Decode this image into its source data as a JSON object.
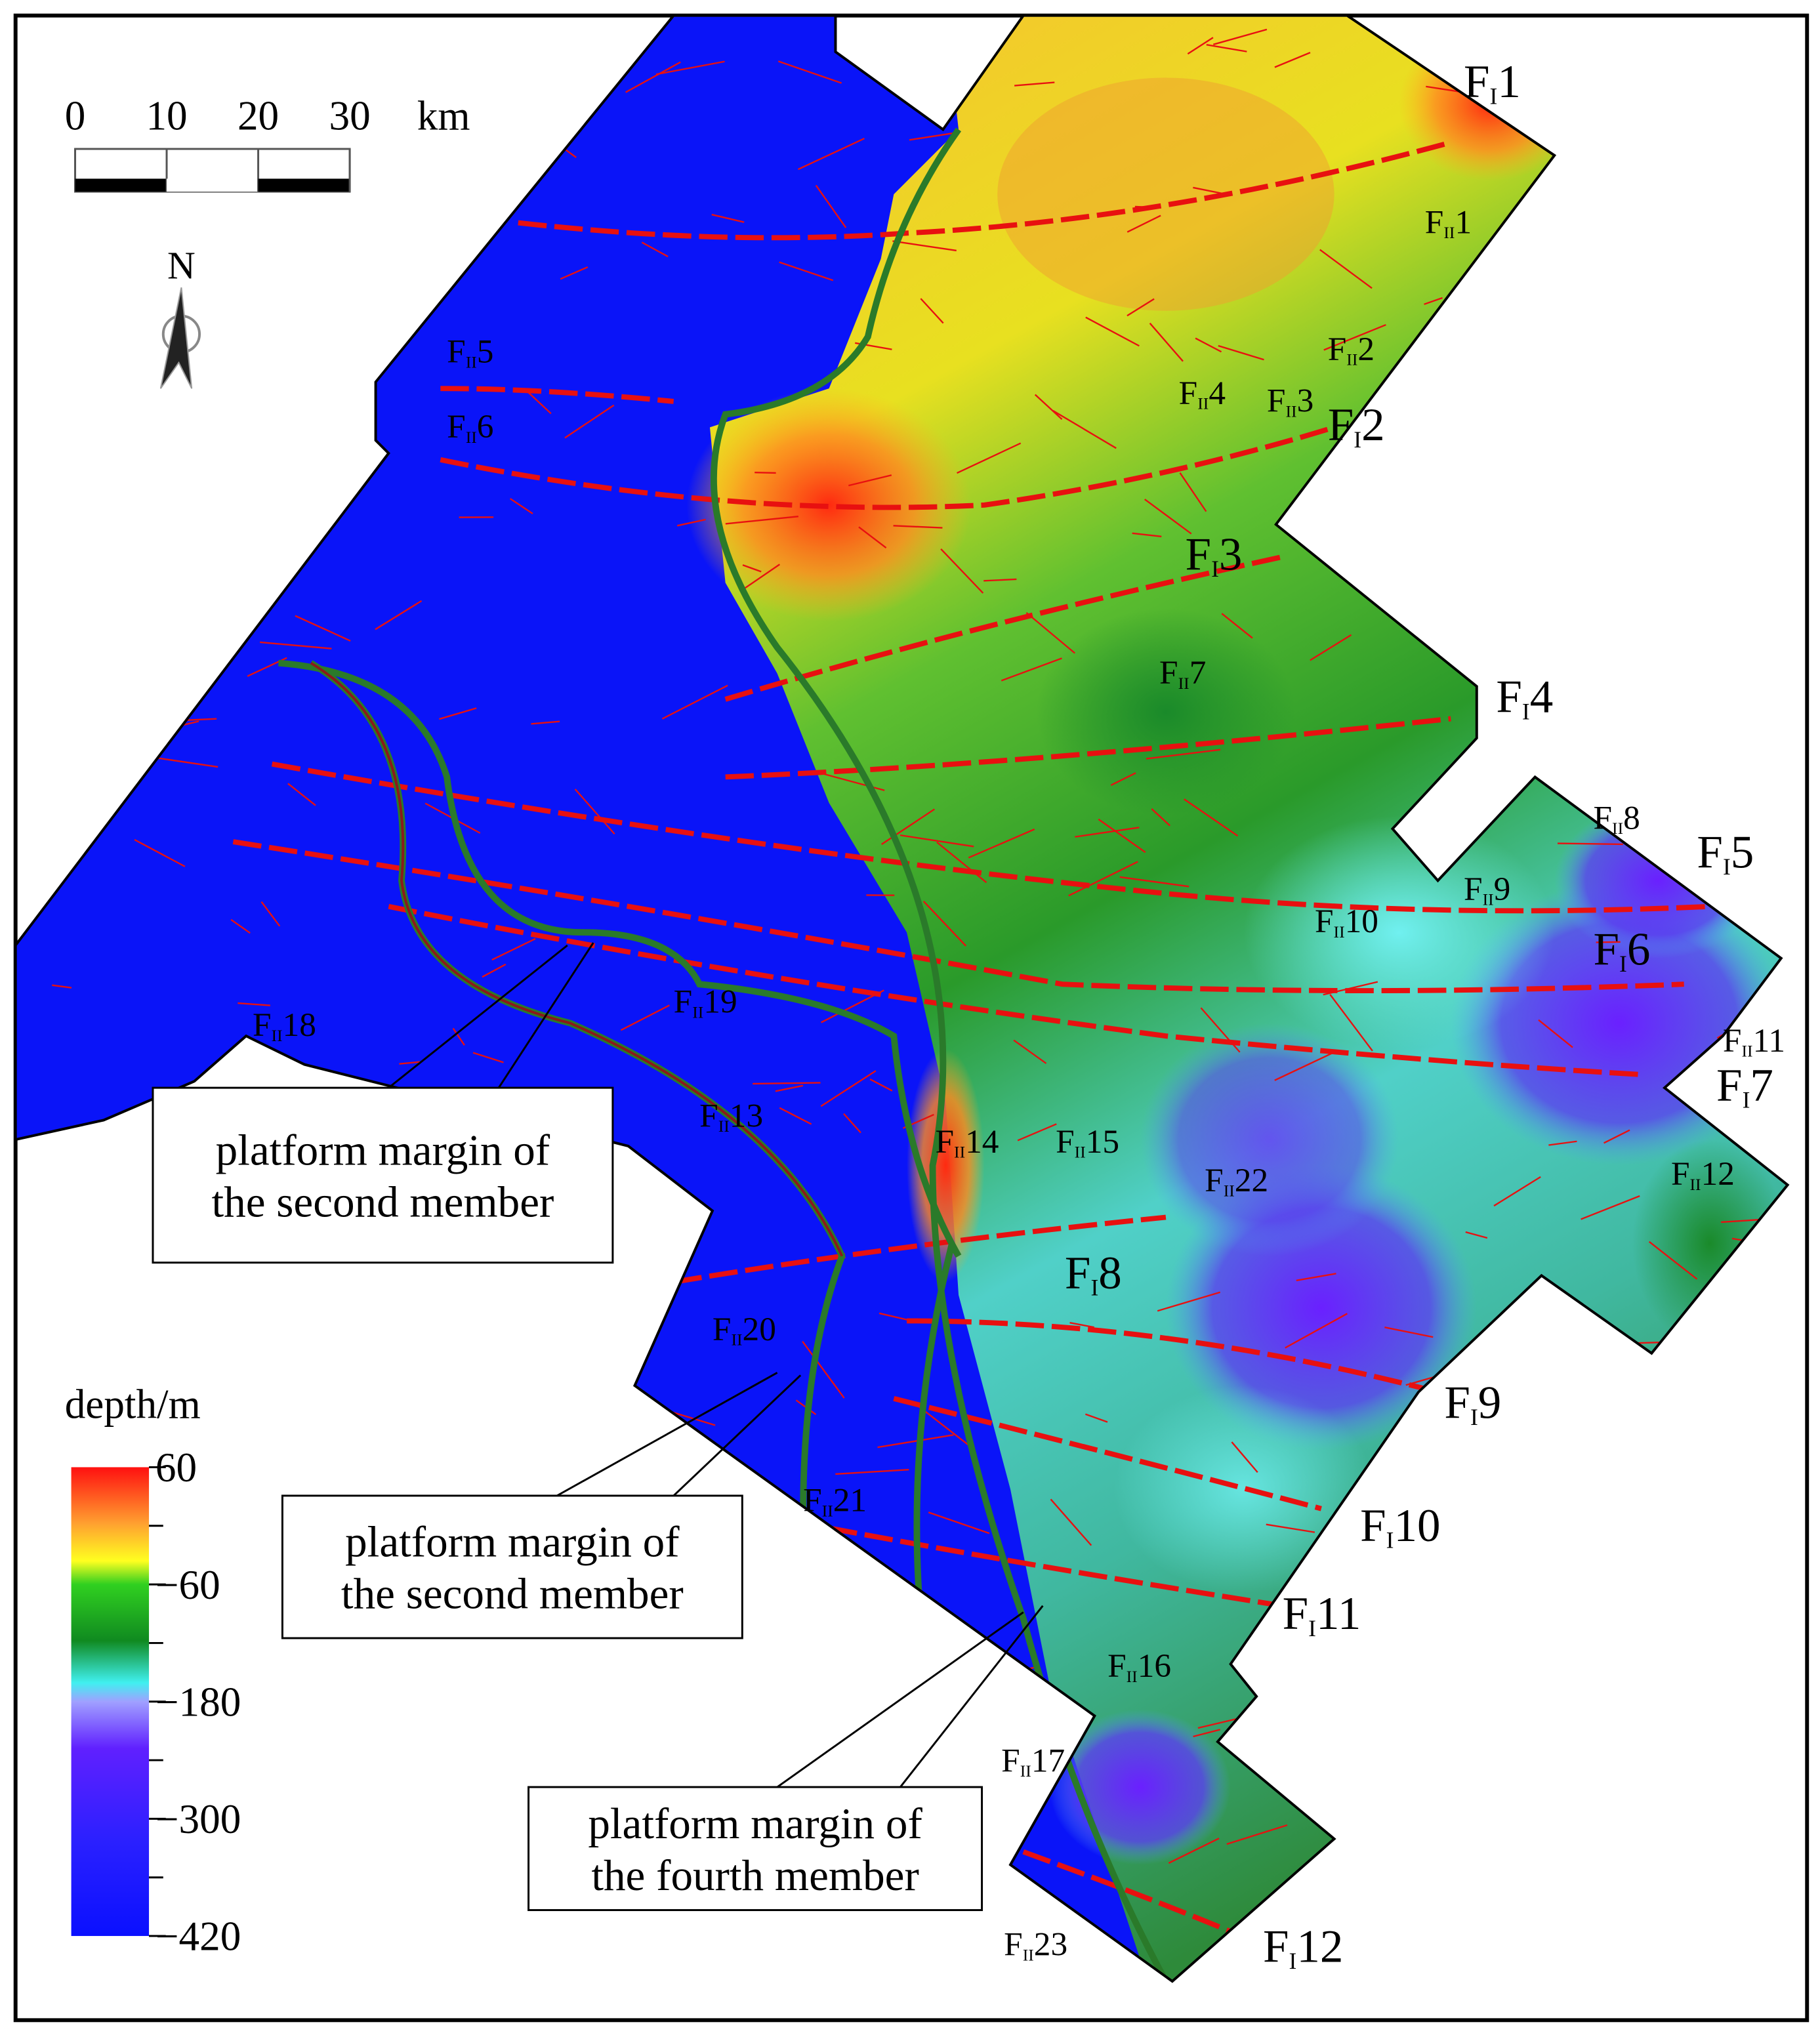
{
  "scale_bar": {
    "ticks": [
      0,
      10,
      20,
      30
    ],
    "unit": "km"
  },
  "north_label": "N",
  "faults": [
    {
      "letter": "F",
      "grade": "I",
      "number": "1"
    },
    {
      "letter": "F",
      "grade": "II",
      "number": "1"
    },
    {
      "letter": "F",
      "grade": "II",
      "number": "2"
    },
    {
      "letter": "F",
      "grade": "II",
      "number": "4"
    },
    {
      "letter": "F",
      "grade": "II",
      "number": "3"
    },
    {
      "letter": "F",
      "grade": "I",
      "number": "2"
    },
    {
      "letter": "F",
      "grade": "II",
      "number": "5"
    },
    {
      "letter": "F",
      "grade": "II",
      "number": "6"
    },
    {
      "letter": "F",
      "grade": "I",
      "number": "3"
    },
    {
      "letter": "F",
      "grade": "II",
      "number": "7"
    },
    {
      "letter": "F",
      "grade": "I",
      "number": "4"
    },
    {
      "letter": "F",
      "grade": "II",
      "number": "8"
    },
    {
      "letter": "F",
      "grade": "I",
      "number": "5"
    },
    {
      "letter": "F",
      "grade": "II",
      "number": "9"
    },
    {
      "letter": "F",
      "grade": "II",
      "number": "10"
    },
    {
      "letter": "F",
      "grade": "I",
      "number": "6"
    },
    {
      "letter": "F",
      "grade": "II",
      "number": "11"
    },
    {
      "letter": "F",
      "grade": "I",
      "number": "7"
    },
    {
      "letter": "F",
      "grade": "II",
      "number": "18"
    },
    {
      "letter": "F",
      "grade": "II",
      "number": "19"
    },
    {
      "letter": "F",
      "grade": "II",
      "number": "13"
    },
    {
      "letter": "F",
      "grade": "II",
      "number": "14"
    },
    {
      "letter": "F",
      "grade": "II",
      "number": "15"
    },
    {
      "letter": "F",
      "grade": "II",
      "number": "22"
    },
    {
      "letter": "F",
      "grade": "II",
      "number": "12"
    },
    {
      "letter": "F",
      "grade": "I",
      "number": "8"
    },
    {
      "letter": "F",
      "grade": "II",
      "number": "20"
    },
    {
      "letter": "F",
      "grade": "I",
      "number": "9"
    },
    {
      "letter": "F",
      "grade": "II",
      "number": "21"
    },
    {
      "letter": "F",
      "grade": "I",
      "number": "10"
    },
    {
      "letter": "F",
      "grade": "I",
      "number": "11"
    },
    {
      "letter": "F",
      "grade": "II",
      "number": "16"
    },
    {
      "letter": "F",
      "grade": "II",
      "number": "17"
    },
    {
      "letter": "F",
      "grade": "II",
      "number": "23"
    },
    {
      "letter": "F",
      "grade": "I",
      "number": "12"
    }
  ],
  "callouts": [
    {
      "lines": [
        "platform margin of",
        "the second member"
      ]
    },
    {
      "lines": [
        "platform margin of",
        "the second member"
      ]
    },
    {
      "lines": [
        "platform margin of",
        "the fourth member"
      ]
    }
  ],
  "legend": {
    "title": "depth/m",
    "range": [
      -420,
      60
    ],
    "ticks": [
      60,
      {
        "value": -60,
        "label": "−60"
      },
      {
        "value": -180,
        "label": "−180"
      },
      {
        "value": -300,
        "label": "−300"
      },
      {
        "value": -420,
        "label": "−420"
      }
    ],
    "minor_ticks": [
      0,
      -120,
      -240,
      -360
    ]
  }
}
